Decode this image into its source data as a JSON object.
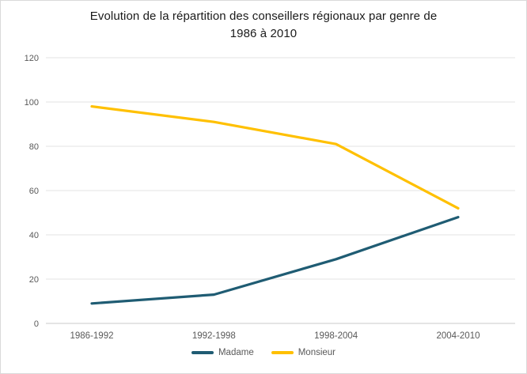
{
  "chart_data": {
    "type": "line",
    "title": "Evolution de la répartition des conseillers régionaux par genre de 1986 à 2010",
    "title_lines": [
      "Evolution de la répartition des conseillers régionaux par genre de",
      "1986 à 2010"
    ],
    "categories": [
      "1986-1992",
      "1992-1998",
      "1998-2004",
      "2004-2010"
    ],
    "series": [
      {
        "name": "Madame",
        "color": "#1f5c73",
        "values": [
          9,
          13,
          29,
          48
        ]
      },
      {
        "name": "Monsieur",
        "color": "#ffc000",
        "values": [
          98,
          91,
          81,
          52
        ]
      }
    ],
    "ylim": [
      0,
      120
    ],
    "yticks": [
      0,
      20,
      40,
      60,
      80,
      100,
      120
    ],
    "grid": true,
    "legend_position": "bottom",
    "xlabel": "",
    "ylabel": ""
  },
  "theme": {
    "background": "#ffffff",
    "border": "#d9d9d9",
    "gridline": "#e3e3e3",
    "axis_line": "#c8c8c8",
    "tick_text": "#595959",
    "title_text": "#1a1a1a",
    "legend_text": "#595959"
  }
}
